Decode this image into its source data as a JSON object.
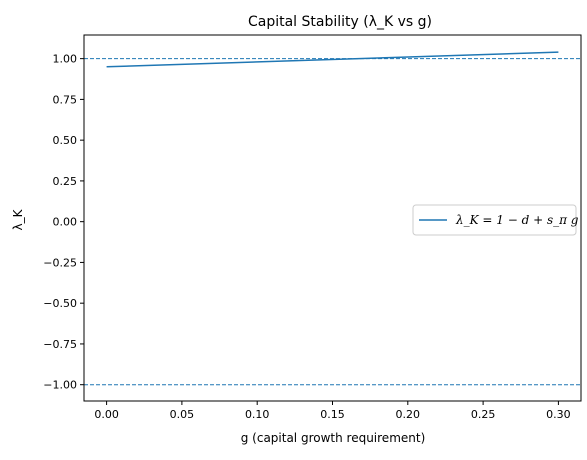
{
  "chart_data": {
    "type": "line",
    "title": "Capital Stability (λ_K vs g)",
    "xlabel": "g (capital growth requirement)",
    "ylabel": "λ_K",
    "xlim": [
      -0.015,
      0.315
    ],
    "ylim": [
      -1.1,
      1.145
    ],
    "xticks": [
      0.0,
      0.05,
      0.1,
      0.15,
      0.2,
      0.25,
      0.3
    ],
    "xtick_labels": [
      "0.00",
      "0.05",
      "0.10",
      "0.15",
      "0.20",
      "0.25",
      "0.30"
    ],
    "yticks": [
      1.0,
      0.75,
      0.5,
      0.25,
      0.0,
      -0.25,
      -0.5,
      -0.75,
      -1.0
    ],
    "ytick_labels": [
      "1.00",
      "0.75",
      "0.50",
      "0.25",
      "0.00",
      "−0.25",
      "−0.50",
      "−0.75",
      "−1.00"
    ],
    "grid": false,
    "legend_position": "center-right",
    "series": [
      {
        "name": "λ_K = 1 − d + s_π g",
        "color": "#1f77b4",
        "x": [
          0.0,
          0.3
        ],
        "y": [
          0.95,
          1.04
        ]
      }
    ],
    "reference_lines": [
      {
        "y": 1.0,
        "style": "dashed",
        "color": "#1f77b4"
      },
      {
        "y": -1.0,
        "style": "dashed",
        "color": "#1f77b4"
      }
    ]
  }
}
